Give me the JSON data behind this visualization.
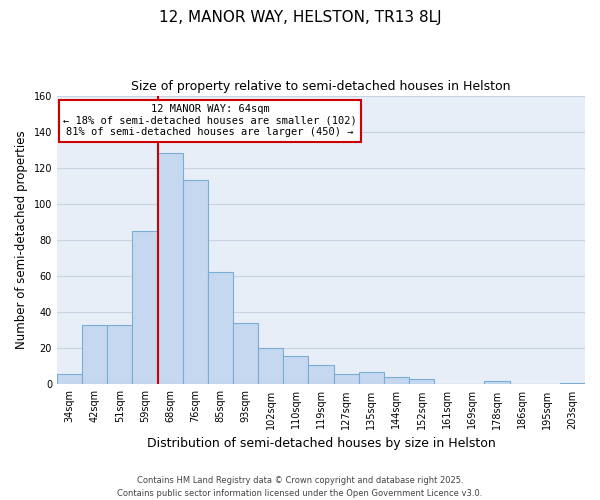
{
  "title": "12, MANOR WAY, HELSTON, TR13 8LJ",
  "subtitle": "Size of property relative to semi-detached houses in Helston",
  "xlabel": "Distribution of semi-detached houses by size in Helston",
  "ylabel": "Number of semi-detached properties",
  "categories": [
    "34sqm",
    "42sqm",
    "51sqm",
    "59sqm",
    "68sqm",
    "76sqm",
    "85sqm",
    "93sqm",
    "102sqm",
    "110sqm",
    "119sqm",
    "127sqm",
    "135sqm",
    "144sqm",
    "152sqm",
    "161sqm",
    "169sqm",
    "178sqm",
    "186sqm",
    "195sqm",
    "203sqm"
  ],
  "values": [
    6,
    33,
    33,
    85,
    128,
    113,
    62,
    34,
    20,
    16,
    11,
    6,
    7,
    4,
    3,
    0,
    0,
    2,
    0,
    0,
    1
  ],
  "bar_color": "#c5d8f0",
  "bar_edge_color": "#7aadd4",
  "vline_color": "#cc0000",
  "vline_x_idx": 3.5,
  "ylim": [
    0,
    160
  ],
  "yticks": [
    0,
    20,
    40,
    60,
    80,
    100,
    120,
    140,
    160
  ],
  "annotation_title": "12 MANOR WAY: 64sqm",
  "annotation_line1": "← 18% of semi-detached houses are smaller (102)",
  "annotation_line2": "81% of semi-detached houses are larger (450) →",
  "annotation_box_color": "#ffffff",
  "annotation_box_edge": "#cc0000",
  "footer_line1": "Contains HM Land Registry data © Crown copyright and database right 2025.",
  "footer_line2": "Contains public sector information licensed under the Open Government Licence v3.0.",
  "background_color": "#ffffff",
  "plot_bg_color": "#e8eef7",
  "grid_color": "#c8d4e4",
  "title_fontsize": 11,
  "subtitle_fontsize": 9,
  "ylabel_fontsize": 8.5,
  "xlabel_fontsize": 9,
  "tick_fontsize": 7,
  "annotation_fontsize": 7.5,
  "footer_fontsize": 6
}
